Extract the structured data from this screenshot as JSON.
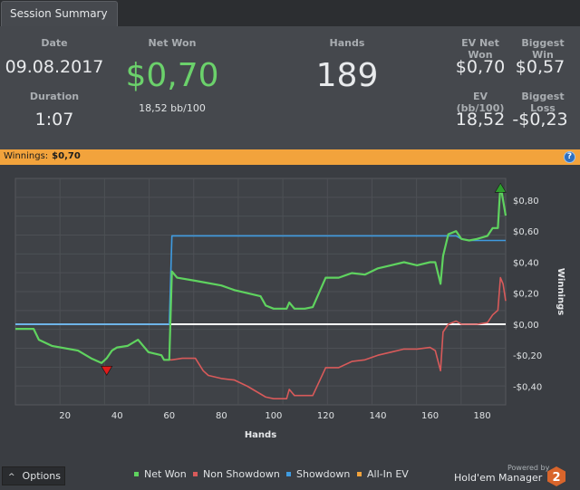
{
  "tab": {
    "label": "Session Summary"
  },
  "summary": {
    "date_label": "Date",
    "date_value": "09.08.2017",
    "duration_label": "Duration",
    "duration_value": "1:07",
    "net_won_label": "Net Won",
    "net_won_value": "$0,70",
    "net_won_sub": "18,52 bb/100",
    "hands_label": "Hands",
    "hands_value": "189",
    "ev_net_won_label": "EV Net Won",
    "ev_net_won_value": "$0,70",
    "biggest_win_label": "Biggest Win",
    "biggest_win_value": "$0,57",
    "ev_bb_label": "EV (bb/100)",
    "ev_bb_value": "18,52",
    "biggest_loss_label": "Biggest Loss",
    "biggest_loss_value": "-$0,23"
  },
  "banner": {
    "label": "Winnings:",
    "value": "$0,70",
    "help_icon": "help-icon",
    "help_glyph": "?"
  },
  "colors": {
    "net_won": "#5fd35f",
    "non_showdown": "#d85a5a",
    "showdown": "#3f9be0",
    "all_in_ev": "#f2a33c",
    "banner": "#f2a33c",
    "zero_line": "#ffffff"
  },
  "chart_data": {
    "type": "line",
    "xlabel": "Hands",
    "ylabel": "Winnings",
    "xlim": [
      1,
      189
    ],
    "ylim": [
      -0.52,
      0.94
    ],
    "x_ticks": [
      20,
      40,
      60,
      80,
      100,
      120,
      140,
      160,
      180
    ],
    "y_ticks": [
      -0.4,
      -0.2,
      0.0,
      0.2,
      0.4,
      0.6,
      0.8
    ],
    "y_tick_labels": [
      "-$0,40",
      "-$0,20",
      "$0,00",
      "$0,20",
      "$0,40",
      "$0,60",
      "$0,80"
    ],
    "y_axis_side": "right",
    "grid": true,
    "legend_position": "bottom",
    "series": [
      {
        "name": "Net Won",
        "color": "#5fd35f",
        "x": [
          1,
          8,
          10,
          15,
          25,
          30,
          34,
          36,
          38,
          40,
          44,
          48,
          52,
          57,
          58,
          60,
          61,
          63,
          70,
          80,
          85,
          90,
          95,
          97,
          100,
          105,
          106,
          108,
          110,
          112,
          115,
          120,
          122,
          125,
          130,
          135,
          140,
          145,
          150,
          155,
          160,
          162,
          164,
          165,
          167,
          170,
          172,
          175,
          178,
          182,
          184,
          186,
          187,
          188,
          189
        ],
        "y": [
          -0.03,
          -0.03,
          -0.1,
          -0.14,
          -0.17,
          -0.22,
          -0.25,
          -0.22,
          -0.17,
          -0.15,
          -0.14,
          -0.1,
          -0.18,
          -0.2,
          -0.23,
          -0.23,
          0.34,
          0.3,
          0.28,
          0.25,
          0.22,
          0.2,
          0.18,
          0.12,
          0.1,
          0.1,
          0.14,
          0.1,
          0.1,
          0.1,
          0.11,
          0.3,
          0.3,
          0.3,
          0.33,
          0.32,
          0.36,
          0.38,
          0.4,
          0.38,
          0.4,
          0.4,
          0.26,
          0.44,
          0.58,
          0.6,
          0.55,
          0.54,
          0.55,
          0.57,
          0.62,
          0.62,
          0.9,
          0.8,
          0.7
        ]
      },
      {
        "name": "Non Showdown",
        "color": "#d85a5a",
        "x": [
          1,
          8,
          10,
          15,
          25,
          30,
          34,
          36,
          38,
          40,
          44,
          48,
          52,
          57,
          58,
          60,
          61,
          65,
          70,
          73,
          75,
          80,
          85,
          90,
          95,
          97,
          100,
          105,
          106,
          108,
          110,
          112,
          115,
          120,
          122,
          125,
          130,
          135,
          140,
          145,
          150,
          155,
          160,
          162,
          164,
          165,
          167,
          170,
          172,
          175,
          178,
          182,
          184,
          186,
          187,
          188,
          189
        ],
        "y": [
          -0.03,
          -0.03,
          -0.1,
          -0.14,
          -0.17,
          -0.22,
          -0.25,
          -0.22,
          -0.17,
          -0.15,
          -0.14,
          -0.1,
          -0.18,
          -0.2,
          -0.23,
          -0.23,
          -0.23,
          -0.22,
          -0.22,
          -0.3,
          -0.33,
          -0.35,
          -0.36,
          -0.4,
          -0.45,
          -0.47,
          -0.48,
          -0.48,
          -0.42,
          -0.46,
          -0.46,
          -0.46,
          -0.46,
          -0.28,
          -0.28,
          -0.28,
          -0.24,
          -0.23,
          -0.2,
          -0.18,
          -0.16,
          -0.16,
          -0.15,
          -0.17,
          -0.3,
          -0.05,
          0.0,
          0.02,
          0.0,
          0.0,
          0.0,
          0.01,
          0.06,
          0.09,
          0.3,
          0.26,
          0.15
        ]
      },
      {
        "name": "Showdown",
        "color": "#3f9be0",
        "x": [
          1,
          58,
          60,
          61,
          170,
          172,
          175,
          189
        ],
        "y": [
          0.0,
          0.0,
          0.0,
          0.57,
          0.57,
          0.55,
          0.54,
          0.54
        ]
      },
      {
        "name": "All-In EV",
        "color": "#f2a33c",
        "x": [],
        "y": []
      }
    ],
    "markers": [
      {
        "type": "min",
        "x": 36,
        "y": -0.3,
        "color": "#e01b1b"
      },
      {
        "type": "max",
        "x": 187,
        "y": 0.88,
        "color": "#2e9e2e"
      }
    ]
  },
  "bottom": {
    "options_label": "Options",
    "chevron_icon": "chevron-up-icon",
    "chevron_glyph": "^",
    "legend": [
      {
        "label": "Net Won",
        "color": "#5fd35f"
      },
      {
        "label": "Non Showdown",
        "color": "#d85a5a"
      },
      {
        "label": "Showdown",
        "color": "#3f9be0"
      },
      {
        "label": "All-In EV",
        "color": "#f2a33c"
      }
    ],
    "powered_by": "Powered by",
    "brand": "Hold'em Manager",
    "logo_icon": "hm2-logo-icon",
    "logo_text": "2"
  }
}
